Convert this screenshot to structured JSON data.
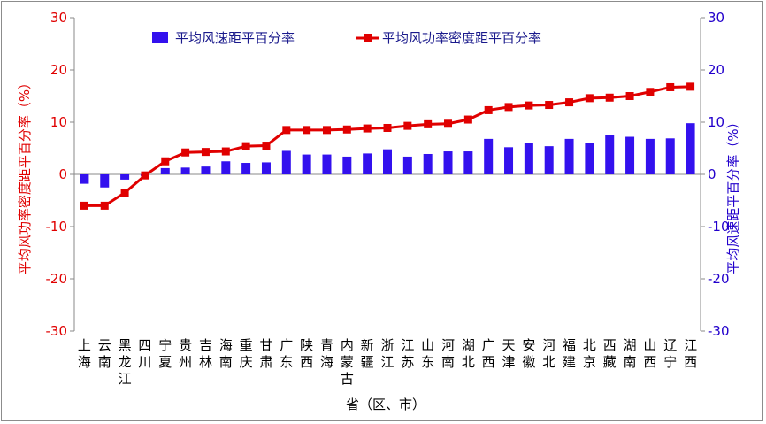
{
  "chart_data": {
    "type": "bar+line",
    "categories": [
      [
        "上",
        "海"
      ],
      [
        "云",
        "南"
      ],
      [
        "黑",
        "龙",
        "江"
      ],
      [
        "四",
        "川"
      ],
      [
        "宁",
        "夏"
      ],
      [
        "贵",
        "州"
      ],
      [
        "吉",
        "林"
      ],
      [
        "海",
        "南"
      ],
      [
        "重",
        "庆"
      ],
      [
        "甘",
        "肃"
      ],
      [
        "广",
        "东"
      ],
      [
        "陕",
        "西"
      ],
      [
        "青",
        "海"
      ],
      [
        "内",
        "蒙",
        "古"
      ],
      [
        "新",
        "疆"
      ],
      [
        "浙",
        "江"
      ],
      [
        "江",
        "苏"
      ],
      [
        "山",
        "东"
      ],
      [
        "河",
        "南"
      ],
      [
        "湖",
        "北"
      ],
      [
        "广",
        "西"
      ],
      [
        "天",
        "津"
      ],
      [
        "安",
        "徽"
      ],
      [
        "河",
        "北"
      ],
      [
        "福",
        "建"
      ],
      [
        "北",
        "京"
      ],
      [
        "西",
        "藏"
      ],
      [
        "湖",
        "南"
      ],
      [
        "山",
        "西"
      ],
      [
        "辽",
        "宁"
      ],
      [
        "江",
        "西"
      ]
    ],
    "series": [
      {
        "name": "平均风速距平百分率",
        "type": "bar",
        "axis": "right",
        "color": "#3311ee",
        "values": [
          -1.8,
          -2.5,
          -1.0,
          -0.3,
          1.2,
          1.3,
          1.5,
          2.5,
          2.2,
          2.3,
          4.5,
          3.8,
          3.8,
          3.4,
          4.0,
          4.8,
          3.4,
          3.9,
          4.4,
          4.4,
          6.8,
          5.2,
          6.0,
          5.4,
          6.8,
          6.0,
          7.6,
          7.2,
          6.8,
          6.9,
          9.8
        ]
      },
      {
        "name": "平均风功率密度距平百分率",
        "type": "line",
        "axis": "left",
        "color": "#e00000",
        "values": [
          -6.0,
          -6.0,
          -3.5,
          -0.2,
          2.5,
          4.2,
          4.3,
          4.4,
          5.4,
          5.5,
          8.5,
          8.5,
          8.5,
          8.6,
          8.8,
          8.9,
          9.3,
          9.6,
          9.7,
          10.5,
          12.3,
          12.9,
          13.2,
          13.3,
          13.8,
          14.6,
          14.7,
          15.0,
          15.8,
          16.7,
          16.8
        ]
      }
    ],
    "ylim_left": [
      -30,
      30
    ],
    "ylim_right": [
      -30,
      30
    ],
    "yticks": [
      -30,
      -20,
      -10,
      0,
      10,
      20,
      30
    ],
    "ylabel_left": "平均风功率密度距平百分率（%）",
    "ylabel_right": "平均风速距平百分率（%）",
    "xlabel": "省（区、市）",
    "legend_position": "top-left"
  }
}
